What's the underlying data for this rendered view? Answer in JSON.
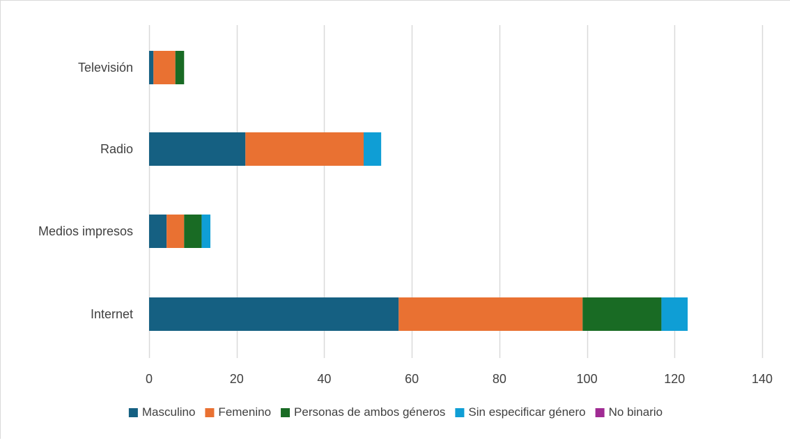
{
  "chart_data": {
    "type": "bar",
    "orientation": "horizontal",
    "stacked": true,
    "title": "",
    "xlabel": "",
    "ylabel": "",
    "categories": [
      "Televisión",
      "Radio",
      "Medios impresos",
      "Internet"
    ],
    "series": [
      {
        "name": "Masculino",
        "color": "#156082",
        "values": [
          1,
          22,
          4,
          57
        ]
      },
      {
        "name": "Femenino",
        "color": "#E97132",
        "values": [
          5,
          27,
          4,
          42
        ]
      },
      {
        "name": "Personas de ambos géneros",
        "color": "#196B24",
        "values": [
          2,
          0,
          4,
          18
        ]
      },
      {
        "name": "Sin especificar género",
        "color": "#0F9ED5",
        "values": [
          0,
          4,
          2,
          6
        ]
      },
      {
        "name": "No binario",
        "color": "#A02B93",
        "values": [
          0,
          0,
          0,
          0
        ]
      }
    ],
    "xlim": [
      0,
      140
    ],
    "xticks": [
      0,
      20,
      40,
      60,
      80,
      100,
      120,
      140
    ],
    "grid": "vertical",
    "legend_position": "bottom"
  }
}
